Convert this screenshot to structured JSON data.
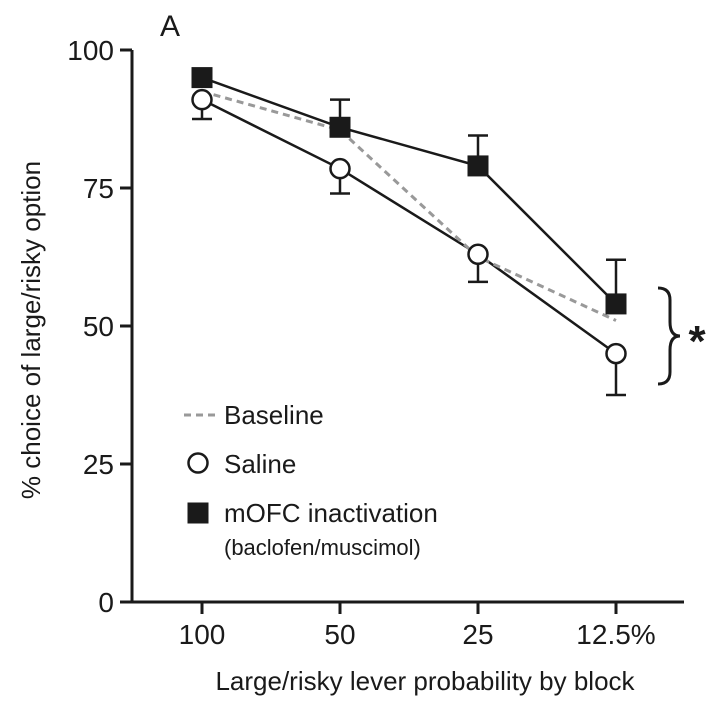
{
  "panel_label": "A",
  "chart_data": {
    "type": "line",
    "xlabel": "Large/risky lever probability by block",
    "ylabel": "% choice of large/risky option",
    "categories": [
      "100",
      "50",
      "25",
      "12.5%"
    ],
    "ylim": [
      0,
      100
    ],
    "yticks": [
      "0",
      "25",
      "50",
      "75",
      "100"
    ],
    "grid": false,
    "legend_position": "bottom-left",
    "significance_marker": "*",
    "series": [
      {
        "name": "Baseline",
        "style": "dashed",
        "color": "#999999",
        "values": [
          92.5,
          85.5,
          62.5,
          51
        ]
      },
      {
        "name": "Saline",
        "style": "solid-open-circle",
        "color": "#1a1a1a",
        "values": [
          91,
          78.5,
          63,
          45
        ],
        "error_lower": [
          87.5,
          74,
          58,
          37.5
        ]
      },
      {
        "name": "mOFC inactivation",
        "sublabel": "(baclofen/muscimol)",
        "style": "solid-filled-square",
        "color": "#1a1a1a",
        "values": [
          95,
          86,
          79,
          54
        ],
        "error_upper": [
          95,
          91,
          84.5,
          62
        ]
      }
    ]
  }
}
